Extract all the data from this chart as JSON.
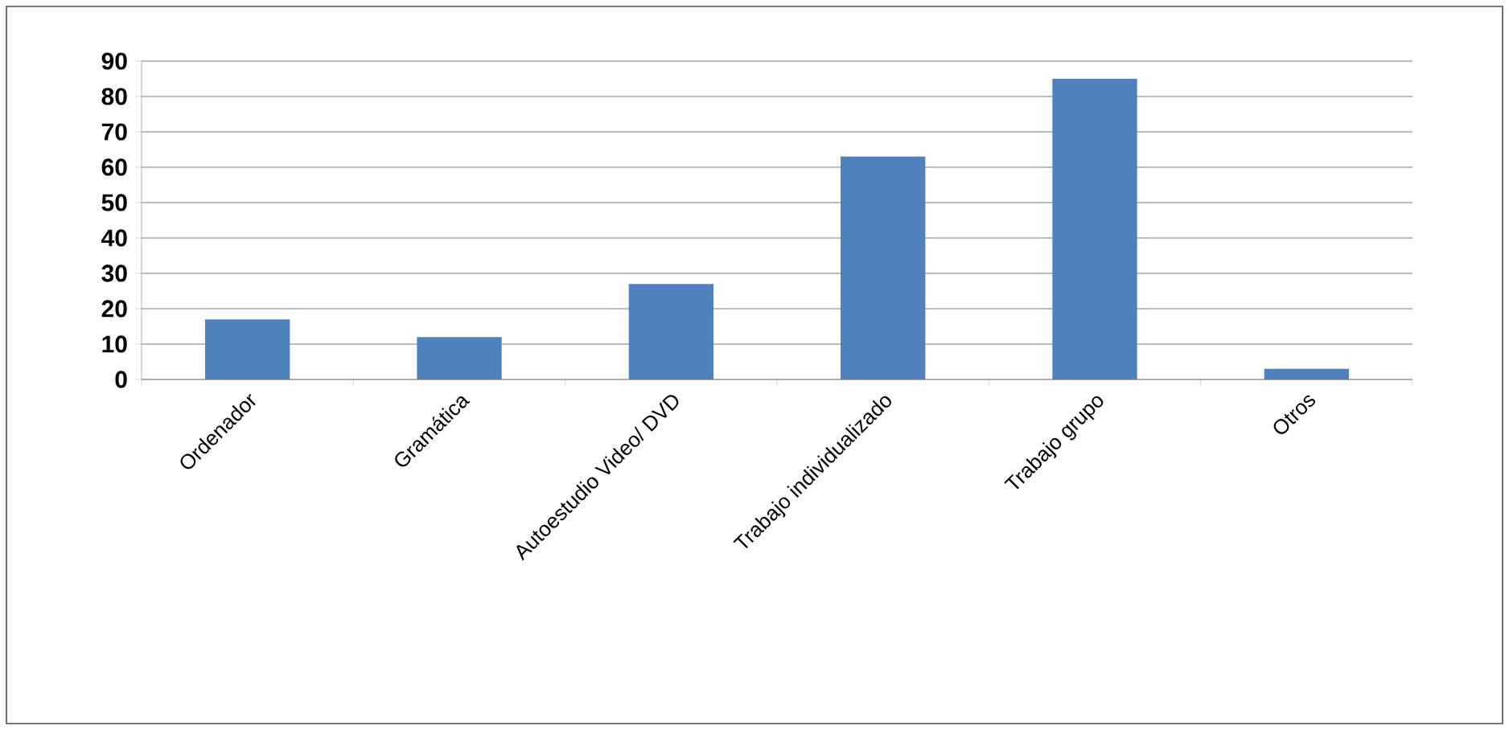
{
  "chart_data": {
    "type": "bar",
    "categories": [
      "Ordenador",
      "Gramática",
      "Autoestudio Video/ DVD",
      "Trabajo individualizado",
      "Trabajo grupo",
      "Otros"
    ],
    "values": [
      17,
      12,
      27,
      63,
      85,
      3
    ],
    "color": "#4f81bd",
    "ylim": [
      0,
      90
    ],
    "yticks": [
      0,
      10,
      20,
      30,
      40,
      50,
      60,
      70,
      80,
      90
    ],
    "grid": "y"
  }
}
